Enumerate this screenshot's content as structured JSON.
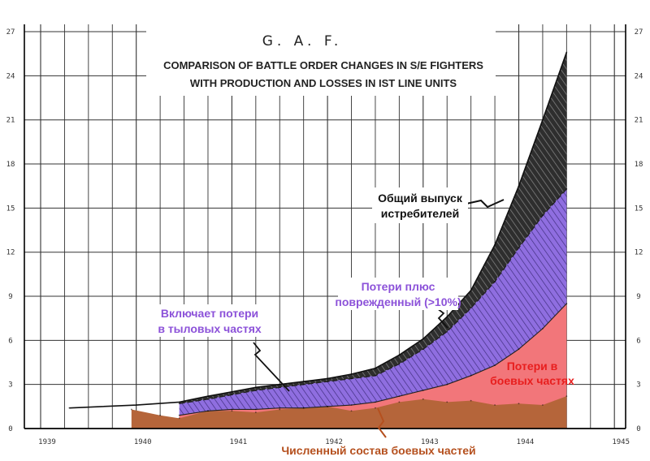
{
  "chart_data": {
    "type": "area",
    "title": "G. A. F.",
    "subtitle": [
      "COMPARISON OF BATTLE ORDER CHANGES IN S/E FIGHTERS",
      "WITH PRODUCTION AND LOSSES IN IST LINE UNITS"
    ],
    "xlabel": "",
    "ylabel": "",
    "x_ticks": [
      "1939",
      "1940",
      "1941",
      "1942",
      "1943",
      "1944",
      "1945"
    ],
    "y_ticks": [
      "0",
      "3",
      "6",
      "9",
      "12",
      "15",
      "18",
      "21",
      "24",
      "27"
    ],
    "ylim": [
      0,
      27.5
    ],
    "xlim": [
      1939,
      1945
    ],
    "grid": true,
    "x_minor_step": 0.25,
    "series": [
      {
        "name": "Численный состав боевых частей",
        "color": "#b5653a",
        "x": [
          1939.95,
          1940.25,
          1940.45,
          1940.75,
          1941.0,
          1941.25,
          1941.5,
          1941.75,
          1942.0,
          1942.25,
          1942.5,
          1942.75,
          1943.0,
          1943.25,
          1943.5,
          1943.75,
          1944.0,
          1944.25,
          1944.5
        ],
        "values": [
          1.3,
          0.9,
          0.7,
          1.2,
          1.2,
          1.1,
          1.3,
          1.4,
          1.5,
          1.2,
          1.4,
          1.8,
          2.0,
          1.8,
          1.9,
          1.6,
          1.7,
          1.6,
          2.2
        ]
      },
      {
        "name": "Потери в боевых частях",
        "color": "#f2767a",
        "x": [
          1940.45,
          1940.75,
          1941.0,
          1941.25,
          1941.5,
          1941.75,
          1942.0,
          1942.25,
          1942.5,
          1942.75,
          1943.0,
          1943.25,
          1943.5,
          1943.75,
          1944.0,
          1944.25,
          1944.5
        ],
        "values": [
          0.9,
          1.2,
          1.3,
          1.3,
          1.4,
          1.4,
          1.5,
          1.6,
          1.8,
          2.2,
          2.6,
          3.0,
          3.6,
          4.3,
          5.4,
          6.8,
          8.5
        ]
      },
      {
        "name": "Потери плюс поврежденный (>10%)",
        "color": "#9b7fe0",
        "x": [
          1940.45,
          1940.75,
          1941.0,
          1941.25,
          1941.5,
          1941.75,
          1942.0,
          1942.25,
          1942.5,
          1942.75,
          1943.0,
          1943.25,
          1943.5,
          1943.75,
          1944.0,
          1944.25,
          1944.5
        ],
        "values": [
          1.7,
          2.0,
          2.3,
          2.6,
          2.8,
          3.0,
          3.2,
          3.4,
          3.6,
          4.4,
          5.4,
          6.6,
          8.2,
          10.0,
          12.3,
          14.5,
          16.3
        ]
      },
      {
        "name": "Общий выпуск истребителей",
        "color": "#3a3a3a",
        "x": [
          1939.3,
          1940.0,
          1940.45,
          1940.75,
          1941.0,
          1941.25,
          1941.5,
          1941.75,
          1942.0,
          1942.25,
          1942.5,
          1942.75,
          1943.0,
          1943.25,
          1943.5,
          1943.75,
          1944.0,
          1944.25,
          1944.5
        ],
        "values": [
          1.4,
          1.6,
          1.8,
          2.2,
          2.5,
          2.8,
          3.0,
          3.2,
          3.4,
          3.7,
          4.1,
          5.0,
          6.1,
          7.6,
          9.4,
          12.5,
          16.5,
          21.0,
          25.6
        ]
      }
    ],
    "annotations": [
      {
        "text": [
          "Общий выпуск",
          "истребителей"
        ],
        "color": "#111111"
      },
      {
        "text": [
          "Потери плюс",
          "поврежденный (>10%)"
        ],
        "color": "#8c52d9"
      },
      {
        "text": [
          "Включает потери",
          "в тыловых частях"
        ],
        "color": "#8c52d9"
      },
      {
        "text": [
          "Потери в",
          "боевых  частях"
        ],
        "color": "#e81e1e"
      },
      {
        "text": [
          "Численный состав боевых частей"
        ],
        "color": "#b5501e"
      }
    ]
  }
}
